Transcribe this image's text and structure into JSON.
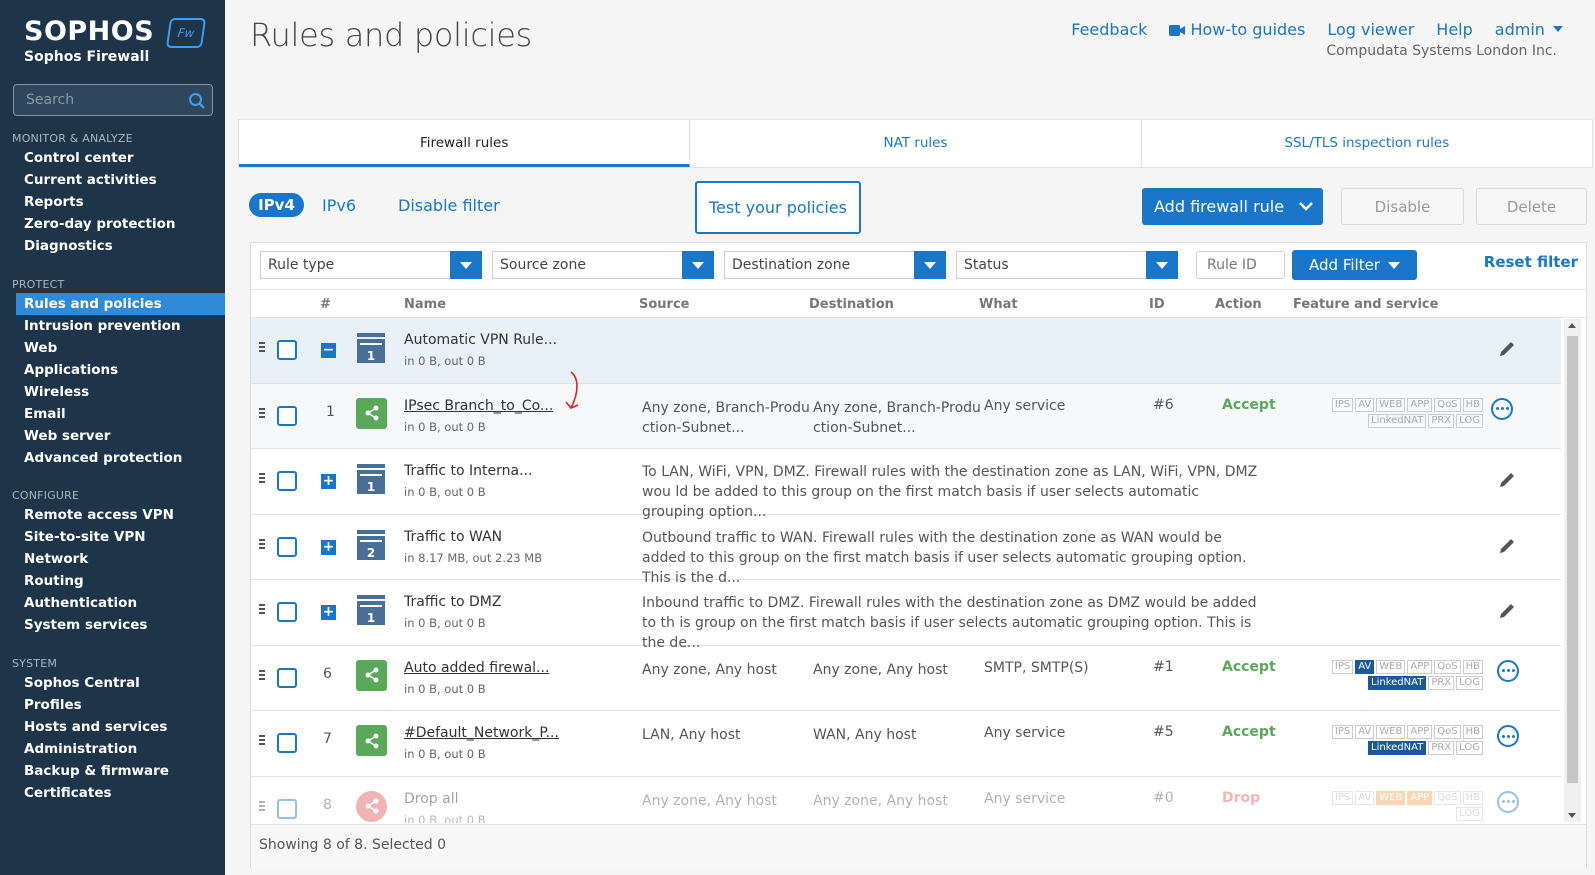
{
  "brand": {
    "logo_text": "SOPHOS",
    "product": "Sophos Firewall",
    "badge": "Fw"
  },
  "search": {
    "placeholder": "Search"
  },
  "nav": {
    "monitor": {
      "heading": "MONITOR & ANALYZE",
      "items": [
        "Control center",
        "Current activities",
        "Reports",
        "Zero-day protection",
        "Diagnostics"
      ]
    },
    "protect": {
      "heading": "PROTECT",
      "items": [
        "Rules and policies",
        "Intrusion prevention",
        "Web",
        "Applications",
        "Wireless",
        "Email",
        "Web server",
        "Advanced protection"
      ]
    },
    "configure": {
      "heading": "CONFIGURE",
      "items": [
        "Remote access VPN",
        "Site-to-site VPN",
        "Network",
        "Routing",
        "Authentication",
        "System services"
      ]
    },
    "system": {
      "heading": "SYSTEM",
      "items": [
        "Sophos Central",
        "Profiles",
        "Hosts and services",
        "Administration",
        "Backup & firmware",
        "Certificates"
      ]
    },
    "active": "Rules and policies"
  },
  "header": {
    "title": "Rules and policies",
    "links": {
      "feedback": "Feedback",
      "howto": "How-to guides",
      "log_viewer": "Log viewer",
      "help": "Help",
      "admin": "admin"
    },
    "org": "Compudata Systems London Inc."
  },
  "tabs": [
    "Firewall rules",
    "NAT rules",
    "SSL/TLS inspection rules"
  ],
  "toolbar": {
    "ipv4": "IPv4",
    "ipv6": "IPv6",
    "disable_filter": "Disable filter",
    "test_policies": "Test your policies",
    "add_rule": "Add firewall rule",
    "disable": "Disable",
    "delete": "Delete"
  },
  "filters": {
    "rule_type": "Rule type",
    "source_zone": "Source zone",
    "destination_zone": "Destination zone",
    "status": "Status",
    "rule_id_placeholder": "Rule ID",
    "add_filter": "Add Filter",
    "reset": "Reset filter"
  },
  "columns": {
    "num": "#",
    "name": "Name",
    "source": "Source",
    "destination": "Destination",
    "what": "What",
    "id": "ID",
    "action": "Action",
    "feature": "Feature and service"
  },
  "rows": [
    {
      "name": "Automatic VPN Rule...",
      "traffic": "in 0 B, out 0 B",
      "group_count": "1"
    },
    {
      "num": "1",
      "name": "IPsec Branch_to_Co...",
      "traffic": "in 0 B, out 0 B",
      "source": "Any zone, Branch-Produ ction-Subnet...",
      "destination": "Any zone, Branch-Produ ction-Subnet...",
      "what": "Any service",
      "id": "#6",
      "action": "Accept"
    },
    {
      "name": "Traffic to Interna...",
      "traffic": "in 0 B, out 0 B",
      "group_count": "1",
      "desc": "To LAN, WiFi, VPN, DMZ. Firewall rules with the destination zone as LAN, WiFi, VPN, DMZ wou ld be added to this group on the first match basis if user selects automatic grouping option..."
    },
    {
      "name": "Traffic to WAN",
      "traffic": "in 8.17 MB, out 2.23 MB",
      "group_count": "2",
      "desc": "Outbound traffic to WAN. Firewall rules with the destination zone as WAN would be added to this group on the first match basis if user selects automatic grouping option. This is the d..."
    },
    {
      "name": "Traffic to DMZ",
      "traffic": "in 0 B, out 0 B",
      "group_count": "1",
      "desc": "Inbound traffic to DMZ. Firewall rules with the destination zone as DMZ would be added to th is group on the first match basis if user selects automatic grouping option. This is the de..."
    },
    {
      "num": "6",
      "name": "Auto added firewal...",
      "traffic": "in 0 B, out 0 B",
      "source": "Any zone, Any host",
      "destination": "Any zone, Any host",
      "what": "SMTP, SMTP(S)",
      "id": "#1",
      "action": "Accept"
    },
    {
      "num": "7",
      "name": "#Default_Network_P...",
      "traffic": "in 0 B, out 0 B",
      "source": "LAN, Any host",
      "destination": "WAN, Any host",
      "what": "Any service",
      "id": "#5",
      "action": "Accept"
    },
    {
      "num": "8",
      "name": "Drop all",
      "traffic": "in 0 B, out 0 B",
      "source": "Any zone, Any host",
      "destination": "Any zone, Any host",
      "what": "Any service",
      "id": "#0",
      "action": "Drop"
    }
  ],
  "badges": [
    "IPS",
    "AV",
    "WEB",
    "APP",
    "QoS",
    "HB",
    "LinkedNAT",
    "PRX",
    "LOG"
  ],
  "footer": {
    "status": "Showing 8 of 8. Selected 0"
  },
  "colors": {
    "sidebar": "#1d3449",
    "accent": "#1a76c8",
    "accept": "#5aa85a",
    "drop": "#e05a5a"
  }
}
